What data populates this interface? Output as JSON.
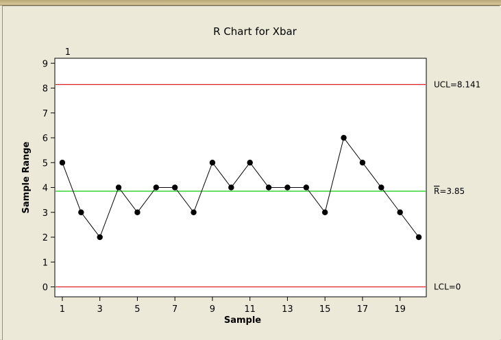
{
  "chart_data": {
    "type": "line",
    "title": "R Chart for Xbar",
    "xlabel": "Sample",
    "ylabel": "Sample Range",
    "xlim": [
      0.6,
      20.4
    ],
    "ylim": [
      -0.4,
      9.2
    ],
    "x_ticks": [
      1,
      3,
      5,
      7,
      9,
      11,
      13,
      15,
      17,
      19
    ],
    "y_ticks": [
      0,
      1,
      2,
      3,
      4,
      5,
      6,
      7,
      8,
      9
    ],
    "x": [
      1,
      2,
      3,
      4,
      5,
      6,
      7,
      8,
      9,
      10,
      11,
      12,
      13,
      14,
      15,
      16,
      17,
      18,
      19,
      20
    ],
    "values": [
      5,
      3,
      2,
      4,
      3,
      4,
      4,
      3,
      5,
      4,
      5,
      4,
      4,
      4,
      3,
      6,
      5,
      4,
      3,
      2
    ],
    "limits": {
      "ucl": {
        "value": 8.141,
        "label": "UCL=8.141",
        "color": "#e02020"
      },
      "center": {
        "value": 3.85,
        "label_bar": "R",
        "label_rest": "=3.85",
        "color": "#20d020"
      },
      "lcl": {
        "value": 0,
        "label": "LCL=0",
        "color": "#e02020"
      }
    },
    "annotations": [
      {
        "x": 1,
        "text": "1"
      }
    ],
    "grid": false,
    "line_color": "#000000",
    "marker_color": "#000000"
  }
}
